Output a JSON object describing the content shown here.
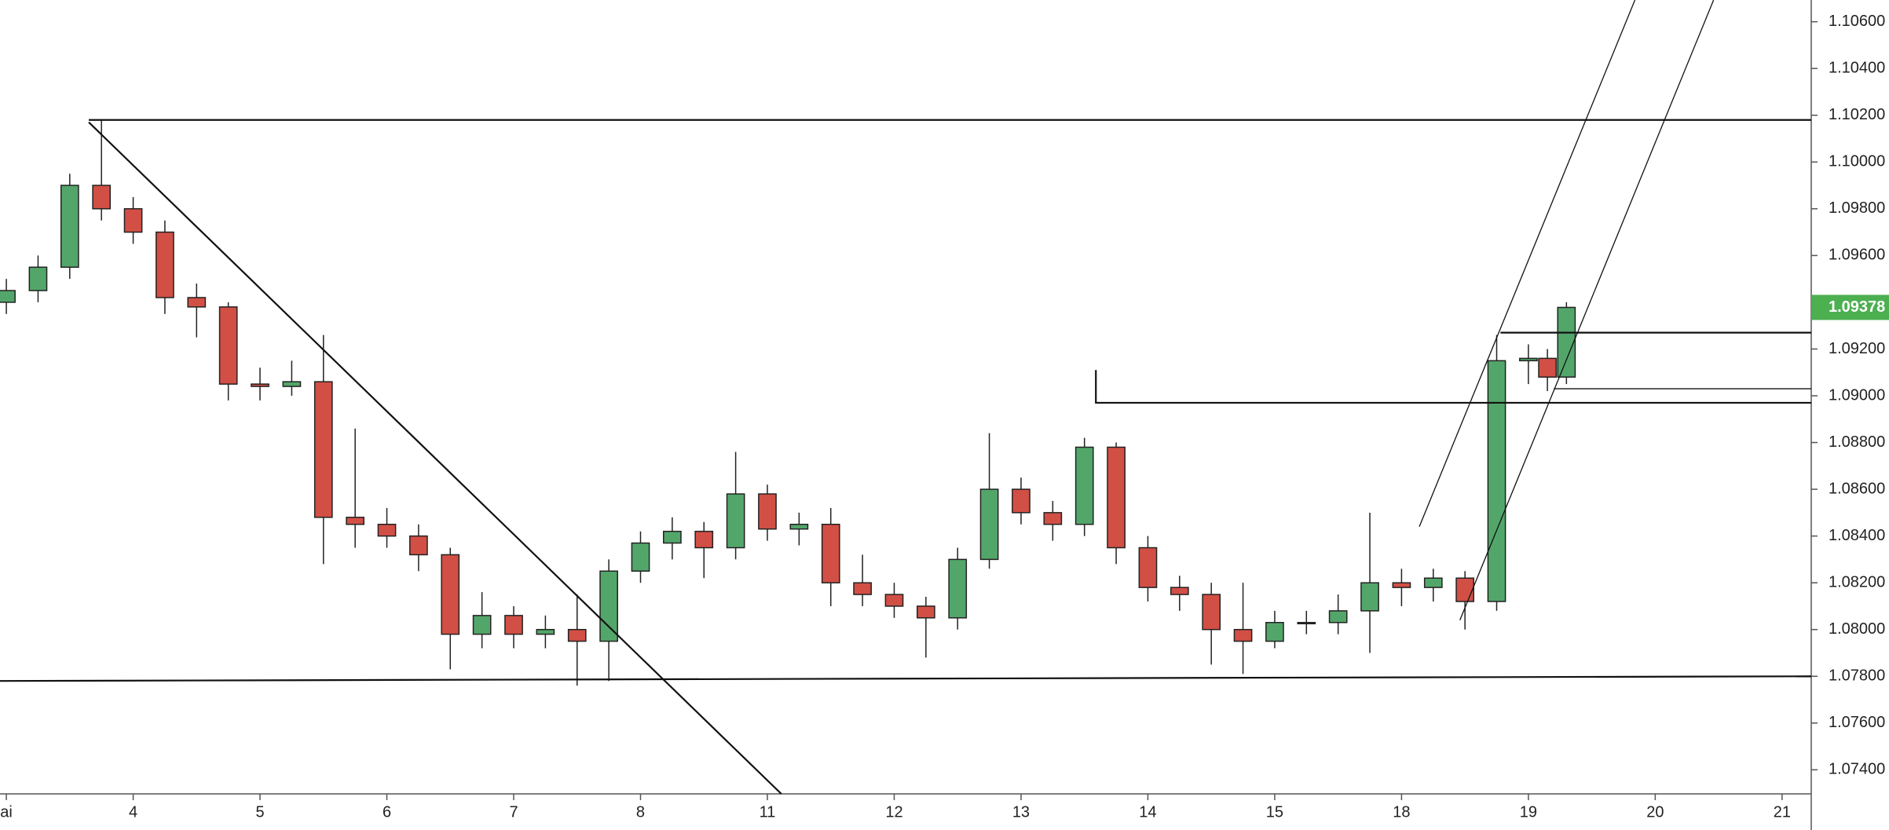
{
  "chart_data": {
    "type": "candlestick",
    "up_color": "#53a66a",
    "down_color": "#d24f45",
    "x": [
      0,
      0.25,
      0.5,
      0.75,
      1.0,
      1.25,
      1.5,
      1.75,
      2.0,
      2.25,
      2.5,
      2.75,
      3.0,
      3.25,
      3.5,
      3.75,
      4.0,
      4.25,
      4.5,
      4.75,
      5.0,
      5.25,
      5.5,
      5.75,
      6.0,
      6.25,
      6.5,
      6.75,
      7.0,
      7.25,
      7.5,
      7.75,
      8.0,
      8.25,
      8.5,
      8.75,
      9.0,
      9.25,
      9.5,
      9.75,
      10.0,
      10.25,
      10.5,
      10.75,
      11.0,
      11.25,
      11.5,
      11.75,
      12.0,
      12.15,
      12.3
    ],
    "open": [
      1.094,
      1.0945,
      1.0955,
      1.099,
      1.098,
      1.097,
      1.0942,
      1.0938,
      1.0905,
      1.0904,
      1.0906,
      1.0848,
      1.0845,
      1.084,
      1.0832,
      1.0798,
      1.0806,
      1.0798,
      1.08,
      1.0795,
      1.0825,
      1.0837,
      1.0842,
      1.0835,
      1.0858,
      1.0843,
      1.0845,
      1.082,
      1.0815,
      1.081,
      1.0805,
      1.083,
      1.086,
      1.085,
      1.0845,
      1.0878,
      1.0835,
      1.0818,
      1.0815,
      1.08,
      1.0795,
      1.0803,
      1.0803,
      1.0808,
      1.082,
      1.0818,
      1.0822,
      1.0812,
      1.0915,
      1.0916,
      1.0908
    ],
    "high": [
      1.095,
      1.096,
      1.0995,
      1.1018,
      1.0985,
      1.0975,
      1.0948,
      1.094,
      1.0912,
      1.0915,
      1.0926,
      1.0886,
      1.0852,
      1.0845,
      1.0835,
      1.0816,
      1.081,
      1.0806,
      1.0815,
      1.083,
      1.0842,
      1.0848,
      1.0846,
      1.0876,
      1.0862,
      1.085,
      1.0852,
      1.0832,
      1.082,
      1.0814,
      1.0835,
      1.0884,
      1.0865,
      1.0855,
      1.0882,
      1.088,
      1.084,
      1.0823,
      1.082,
      1.082,
      1.0808,
      1.0808,
      1.0815,
      1.085,
      1.0826,
      1.0826,
      1.0825,
      1.0926,
      1.0922,
      1.092,
      1.094
    ],
    "low": [
      1.0935,
      1.094,
      1.095,
      1.0975,
      1.0965,
      1.0935,
      1.0925,
      1.0898,
      1.0898,
      1.09,
      1.0828,
      1.0835,
      1.0835,
      1.0825,
      1.0783,
      1.0792,
      1.0792,
      1.0792,
      1.0776,
      1.0778,
      1.082,
      1.083,
      1.0822,
      1.083,
      1.0838,
      1.0836,
      1.081,
      1.081,
      1.0805,
      1.0788,
      1.08,
      1.0826,
      1.0845,
      1.0838,
      1.084,
      1.0828,
      1.0812,
      1.0808,
      1.0785,
      1.0781,
      1.0792,
      1.0798,
      1.0798,
      1.079,
      1.081,
      1.0812,
      1.08,
      1.0808,
      1.0905,
      1.0902,
      1.0905
    ],
    "close": [
      1.0945,
      1.0955,
      1.099,
      1.098,
      1.097,
      1.0942,
      1.0938,
      1.0905,
      1.0904,
      1.0906,
      1.0848,
      1.0845,
      1.084,
      1.0832,
      1.0798,
      1.0806,
      1.0798,
      1.08,
      1.0795,
      1.0825,
      1.0837,
      1.0842,
      1.0835,
      1.0858,
      1.0843,
      1.0845,
      1.082,
      1.0815,
      1.081,
      1.0805,
      1.083,
      1.086,
      1.085,
      1.0845,
      1.0878,
      1.0835,
      1.0818,
      1.0815,
      1.08,
      1.0795,
      1.0803,
      1.0803,
      1.0808,
      1.082,
      1.0818,
      1.0822,
      1.0812,
      1.0915,
      1.0916,
      1.0908,
      1.09378
    ],
    "last_price": 1.09378,
    "last_price_color": "#4caf50",
    "xlim": [
      -0.05,
      14.23
    ],
    "ylim": [
      1.07297,
      1.10693
    ],
    "xticks": [
      {
        "value": 0,
        "label": "ai"
      },
      {
        "value": 1,
        "label": "4"
      },
      {
        "value": 2,
        "label": "5"
      },
      {
        "value": 3,
        "label": "6"
      },
      {
        "value": 4,
        "label": "7"
      },
      {
        "value": 5,
        "label": "8"
      },
      {
        "value": 6,
        "label": "11"
      },
      {
        "value": 7,
        "label": "12"
      },
      {
        "value": 8,
        "label": "13"
      },
      {
        "value": 9,
        "label": "14"
      },
      {
        "value": 10,
        "label": "15"
      },
      {
        "value": 11,
        "label": "18"
      },
      {
        "value": 12,
        "label": "19"
      },
      {
        "value": 13,
        "label": "20"
      },
      {
        "value": 14,
        "label": "21"
      }
    ],
    "yticks": [
      {
        "value": 1.074,
        "label": "1.07400"
      },
      {
        "value": 1.076,
        "label": "1.07600"
      },
      {
        "value": 1.078,
        "label": "1.07800"
      },
      {
        "value": 1.08,
        "label": "1.08000"
      },
      {
        "value": 1.082,
        "label": "1.08200"
      },
      {
        "value": 1.084,
        "label": "1.08400"
      },
      {
        "value": 1.086,
        "label": "1.08600"
      },
      {
        "value": 1.088,
        "label": "1.08800"
      },
      {
        "value": 1.09,
        "label": "1.09000"
      },
      {
        "value": 1.092,
        "label": "1.09200"
      },
      {
        "value": 1.094,
        "label": "1.09400"
      },
      {
        "value": 1.096,
        "label": "1.09600"
      },
      {
        "value": 1.098,
        "label": "1.09800"
      },
      {
        "value": 1.1,
        "label": "1.10000"
      },
      {
        "value": 1.102,
        "label": "1.10200"
      },
      {
        "value": 1.104,
        "label": "1.10400"
      },
      {
        "value": 1.106,
        "label": "1.10600"
      }
    ],
    "grid": false,
    "drawings": [
      {
        "x": [
          0.65,
          14.23
        ],
        "y": [
          1.1018,
          1.1018
        ]
      },
      {
        "x": [
          0.65,
          6.11
        ],
        "y": [
          1.1017,
          1.07297
        ]
      },
      {
        "x": [
          -0.05,
          14.23
        ],
        "y": [
          1.0778,
          1.078
        ]
      },
      {
        "x": [
          8.59,
          8.59,
          14.23
        ],
        "y": [
          1.0911,
          1.0897,
          1.0897
        ]
      },
      {
        "x": [
          11.78,
          14.23
        ],
        "y": [
          1.0927,
          1.0927
        ]
      },
      {
        "x": [
          12.2,
          14.23
        ],
        "y": [
          1.0903,
          1.0903
        ]
      },
      {
        "x": [
          11.14,
          12.84
        ],
        "y": [
          1.0844,
          1.10693
        ]
      },
      {
        "x": [
          11.46,
          13.46
        ],
        "y": [
          1.0804,
          1.10693
        ]
      }
    ]
  }
}
